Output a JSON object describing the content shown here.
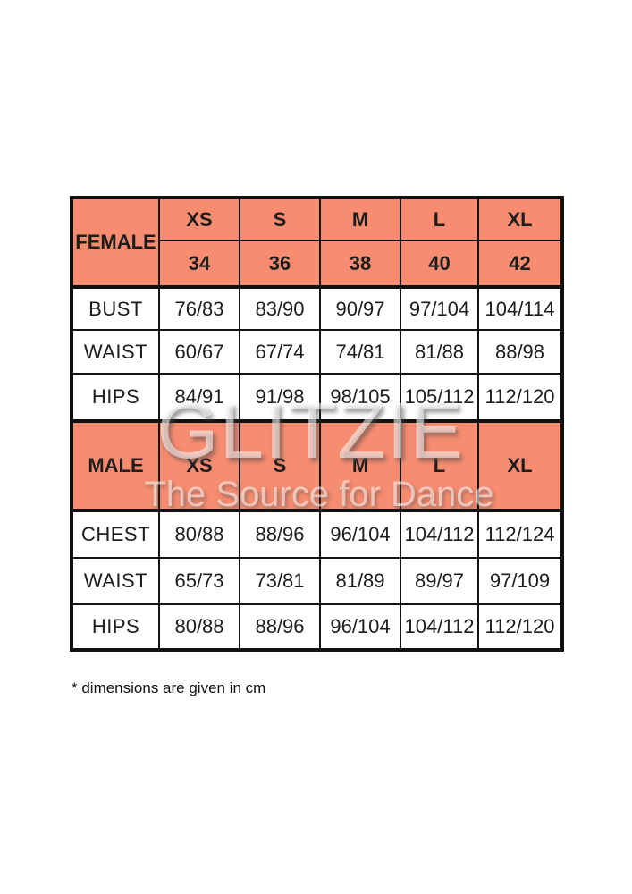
{
  "watermark": {
    "brand": "GLITZIE",
    "tagline": "The Source for Dance"
  },
  "footnote": "* dimensions are given in cm",
  "colors": {
    "header_bg": "#F78C70",
    "border": "#141414",
    "section_label_text": "#32100A",
    "body_text": "#1d1d1d",
    "watermark_text": "rgba(255,255,255,0.55)"
  },
  "female": {
    "label": "FEMALE",
    "sizes": [
      "XS",
      "S",
      "M",
      "L",
      "XL"
    ],
    "size_numbers": [
      "34",
      "36",
      "38",
      "40",
      "42"
    ],
    "rows": [
      {
        "label": "BUST",
        "values": [
          "76/83",
          "83/90",
          "90/97",
          "97/104",
          "104/114"
        ]
      },
      {
        "label": "WAIST",
        "values": [
          "60/67",
          "67/74",
          "74/81",
          "81/88",
          "88/98"
        ]
      },
      {
        "label": "HIPS",
        "values": [
          "84/91",
          "91/98",
          "98/105",
          "105/112",
          "112/120"
        ]
      }
    ]
  },
  "male": {
    "label": "MALE",
    "sizes": [
      "XS",
      "S",
      "M",
      "L",
      "XL"
    ],
    "rows": [
      {
        "label": "CHEST",
        "values": [
          "80/88",
          "88/96",
          "96/104",
          "104/112",
          "112/124"
        ]
      },
      {
        "label": "WAIST",
        "values": [
          "65/73",
          "73/81",
          "81/89",
          "89/97",
          "97/109"
        ]
      },
      {
        "label": "HIPS",
        "values": [
          "80/88",
          "88/96",
          "96/104",
          "104/112",
          "112/120"
        ]
      }
    ]
  },
  "chart_data": [
    {
      "type": "table",
      "title": "FEMALE",
      "columns": [
        "",
        "XS (34)",
        "S (36)",
        "M (38)",
        "L (40)",
        "XL (42)"
      ],
      "rows": [
        [
          "BUST",
          "76/83",
          "83/90",
          "90/97",
          "97/104",
          "104/114"
        ],
        [
          "WAIST",
          "60/67",
          "67/74",
          "74/81",
          "81/88",
          "88/98"
        ],
        [
          "HIPS",
          "84/91",
          "91/98",
          "98/105",
          "105/112",
          "112/120"
        ]
      ],
      "note": "* dimensions are given in cm"
    },
    {
      "type": "table",
      "title": "MALE",
      "columns": [
        "",
        "XS",
        "S",
        "M",
        "L",
        "XL"
      ],
      "rows": [
        [
          "CHEST",
          "80/88",
          "88/96",
          "96/104",
          "104/112",
          "112/124"
        ],
        [
          "WAIST",
          "65/73",
          "73/81",
          "81/89",
          "89/97",
          "97/109"
        ],
        [
          "HIPS",
          "80/88",
          "88/96",
          "96/104",
          "104/112",
          "112/120"
        ]
      ],
      "note": "* dimensions are given in cm"
    }
  ]
}
